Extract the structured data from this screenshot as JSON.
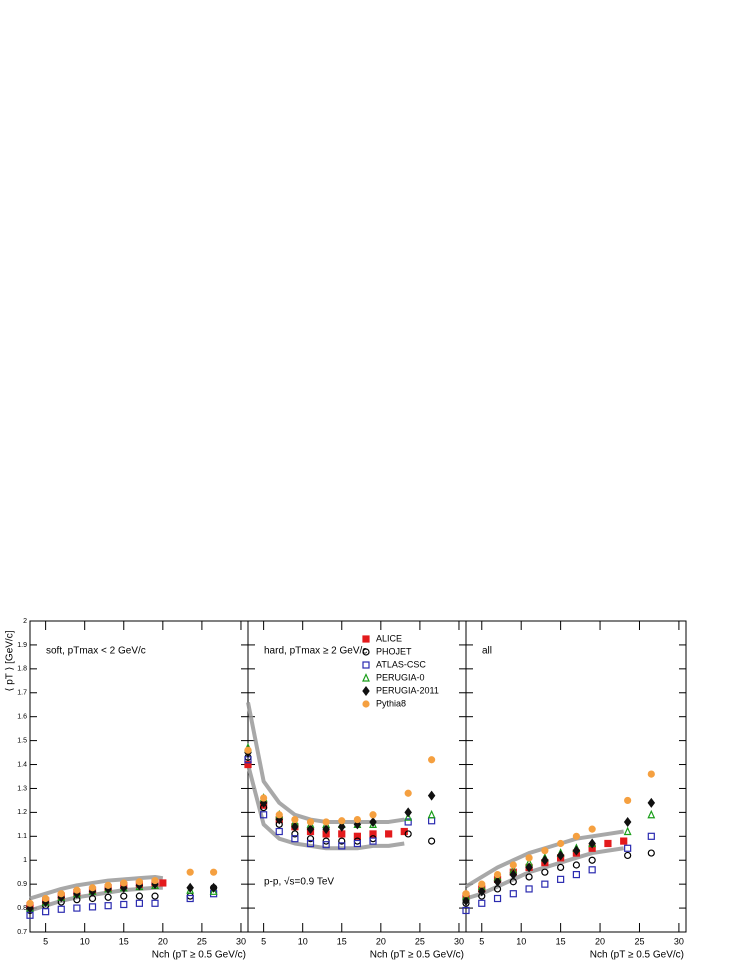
{
  "chart_data": [
    {
      "type": "scatter",
      "title": "soft, pTmax < 2 GeV/c",
      "ylabel": "⟨ pT ⟩ [GeV/c]",
      "xlabel": "Nch (pT ≥ 0.5 GeV/c)",
      "xlim": [
        3,
        30.9
      ],
      "xticks": [
        5,
        10,
        15,
        20,
        25,
        30
      ],
      "ylim": [
        0.7,
        2
      ],
      "yticks": [
        0.7,
        0.8,
        0.9,
        1,
        1.1,
        1.2,
        1.3,
        1.4,
        1.5,
        1.6,
        1.7,
        1.8,
        1.9,
        2
      ],
      "band": {
        "color": "#999999",
        "x": [
          3,
          5,
          7,
          9,
          11,
          13,
          15,
          17,
          19,
          20
        ],
        "lower": [
          0.79,
          0.81,
          0.83,
          0.845,
          0.855,
          0.865,
          0.875,
          0.88,
          0.885,
          0.885
        ],
        "upper": [
          0.84,
          0.86,
          0.88,
          0.895,
          0.905,
          0.915,
          0.92,
          0.925,
          0.93,
          0.925
        ]
      },
      "series": [
        {
          "x": [
            3,
            5,
            7,
            9,
            11,
            13,
            15,
            17,
            19,
            20
          ],
          "values": [
            0.81,
            0.83,
            0.85,
            0.865,
            0.875,
            0.885,
            0.895,
            0.9,
            0.905,
            0.905
          ]
        },
        {
          "x": [
            3,
            5,
            7,
            9,
            11,
            13,
            15,
            17,
            19,
            23.5,
            26.5
          ],
          "values": [
            0.79,
            0.81,
            0.825,
            0.835,
            0.84,
            0.845,
            0.85,
            0.85,
            0.85,
            0.85,
            0.885
          ]
        },
        {
          "x": [
            3,
            5,
            7,
            9,
            11,
            13,
            15,
            17,
            19,
            23.5,
            26.5
          ],
          "values": [
            0.77,
            0.785,
            0.795,
            0.8,
            0.805,
            0.81,
            0.815,
            0.82,
            0.82,
            0.84,
            0.86
          ]
        },
        {
          "x": [
            3,
            5,
            7,
            9,
            11,
            13,
            15,
            17,
            19,
            23.5,
            26.5
          ],
          "values": [
            0.8,
            0.825,
            0.845,
            0.86,
            0.87,
            0.88,
            0.885,
            0.89,
            0.895,
            0.875,
            0.87
          ]
        },
        {
          "x": [
            3,
            5,
            7,
            9,
            11,
            13,
            15,
            17,
            19,
            23.5,
            26.5
          ],
          "values": [
            0.8,
            0.825,
            0.845,
            0.86,
            0.87,
            0.88,
            0.885,
            0.895,
            0.9,
            0.885,
            0.885
          ]
        },
        {
          "x": [
            3,
            5,
            7,
            9,
            11,
            13,
            15,
            17,
            19,
            23.5,
            26.5
          ],
          "values": [
            0.82,
            0.84,
            0.86,
            0.875,
            0.885,
            0.895,
            0.905,
            0.91,
            0.915,
            0.95,
            0.95
          ]
        }
      ]
    },
    {
      "type": "scatter",
      "title": "hard, pTmax ≥ 2 GeV/c",
      "annotation": "p-p, √s=0.9 TeV",
      "xlabel": "Nch (pT ≥ 0.5 GeV/c)",
      "legend": "upper right",
      "xlim": [
        3,
        30.9
      ],
      "xticks": [
        5,
        10,
        15,
        20,
        25,
        30
      ],
      "ylim": [
        0.7,
        2
      ],
      "yticks": [
        0.7,
        0.8,
        0.9,
        1,
        1.1,
        1.2,
        1.3,
        1.4,
        1.5,
        1.6,
        1.7,
        1.8,
        1.9,
        2
      ],
      "band": {
        "color": "#999999",
        "x": [
          3,
          5,
          7,
          9,
          11,
          13,
          15,
          17,
          19,
          21,
          23
        ],
        "lower": [
          1.4,
          1.15,
          1.09,
          1.07,
          1.06,
          1.05,
          1.05,
          1.05,
          1.06,
          1.06,
          1.07
        ],
        "upper": [
          1.66,
          1.33,
          1.24,
          1.19,
          1.17,
          1.16,
          1.16,
          1.16,
          1.16,
          1.16,
          1.17
        ]
      },
      "series": [
        {
          "name": "ALICE",
          "color": "#e31a1c",
          "marker": "square",
          "filled": true,
          "x": [
            3,
            5,
            7,
            9,
            11,
            13,
            15,
            17,
            19,
            21,
            23
          ],
          "values": [
            1.4,
            1.23,
            1.17,
            1.14,
            1.12,
            1.11,
            1.11,
            1.1,
            1.11,
            1.11,
            1.12
          ]
        },
        {
          "name": "PHOJET",
          "color": "#000000",
          "marker": "circle",
          "filled": false,
          "x": [
            3,
            5,
            7,
            9,
            11,
            13,
            15,
            17,
            19,
            23.5,
            26.5
          ],
          "values": [
            1.43,
            1.22,
            1.15,
            1.11,
            1.09,
            1.08,
            1.08,
            1.08,
            1.09,
            1.11,
            1.08
          ]
        },
        {
          "name": "ATLAS-CSC",
          "color": "#2b2bb0",
          "marker": "square",
          "filled": false,
          "x": [
            3,
            5,
            7,
            9,
            11,
            13,
            15,
            17,
            19,
            23.5,
            26.5
          ],
          "values": [
            1.42,
            1.19,
            1.12,
            1.09,
            1.07,
            1.065,
            1.06,
            1.07,
            1.08,
            1.16,
            1.165
          ]
        },
        {
          "name": "PERUGIA-0",
          "color": "#1a9e1a",
          "marker": "triangle",
          "filled": false,
          "x": [
            3,
            5,
            7,
            9,
            11,
            13,
            15,
            17,
            19,
            23.5,
            26.5
          ],
          "values": [
            1.47,
            1.26,
            1.19,
            1.16,
            1.15,
            1.15,
            1.15,
            1.15,
            1.15,
            1.18,
            1.19
          ]
        },
        {
          "name": "PERUGIA-2011",
          "color": "#111111",
          "marker": "diamond",
          "filled": true,
          "x": [
            3,
            5,
            7,
            9,
            11,
            13,
            15,
            17,
            19,
            23.5,
            26.5
          ],
          "values": [
            1.45,
            1.24,
            1.17,
            1.14,
            1.13,
            1.13,
            1.14,
            1.15,
            1.16,
            1.2,
            1.27
          ]
        },
        {
          "name": "Pythia8",
          "color": "#f5a040",
          "marker": "circle",
          "filled": true,
          "x": [
            3,
            5,
            7,
            9,
            11,
            13,
            15,
            17,
            19,
            23.5,
            26.5
          ],
          "values": [
            1.46,
            1.26,
            1.19,
            1.17,
            1.16,
            1.16,
            1.165,
            1.17,
            1.19,
            1.28,
            1.42
          ]
        }
      ]
    },
    {
      "type": "scatter",
      "title": "all",
      "xlabel": "Nch (pT ≥ 0.5 GeV/c)",
      "xlim": [
        3,
        30.9
      ],
      "xticks": [
        5,
        10,
        15,
        20,
        25,
        30
      ],
      "ylim": [
        0.7,
        2
      ],
      "yticks": [
        0.7,
        0.8,
        0.9,
        1,
        1.1,
        1.2,
        1.3,
        1.4,
        1.5,
        1.6,
        1.7,
        1.8,
        1.9,
        2
      ],
      "band": {
        "color": "#999999",
        "x": [
          3,
          5,
          7,
          9,
          11,
          13,
          15,
          17,
          19,
          21,
          23
        ],
        "lower": [
          0.84,
          0.86,
          0.89,
          0.92,
          0.95,
          0.97,
          0.99,
          1.01,
          1.03,
          1.04,
          1.05
        ],
        "upper": [
          0.89,
          0.93,
          0.97,
          1.0,
          1.03,
          1.05,
          1.07,
          1.09,
          1.1,
          1.11,
          1.12
        ]
      },
      "series": [
        {
          "x": [
            3,
            5,
            7,
            9,
            11,
            13,
            15,
            17,
            19,
            21,
            23
          ],
          "values": [
            0.85,
            0.88,
            0.92,
            0.95,
            0.97,
            0.99,
            1.01,
            1.03,
            1.05,
            1.07,
            1.08
          ]
        },
        {
          "x": [
            3,
            5,
            7,
            9,
            11,
            13,
            15,
            17,
            19,
            23.5,
            26.5
          ],
          "values": [
            0.82,
            0.85,
            0.88,
            0.91,
            0.93,
            0.95,
            0.97,
            0.98,
            1.0,
            1.02,
            1.03
          ]
        },
        {
          "x": [
            3,
            5,
            7,
            9,
            11,
            13,
            15,
            17,
            19,
            23.5,
            26.5
          ],
          "values": [
            0.79,
            0.82,
            0.84,
            0.86,
            0.88,
            0.9,
            0.92,
            0.94,
            0.96,
            1.05,
            1.1
          ]
        },
        {
          "x": [
            3,
            5,
            7,
            9,
            11,
            13,
            15,
            17,
            19,
            23.5,
            26.5
          ],
          "values": [
            0.85,
            0.89,
            0.93,
            0.96,
            0.99,
            1.01,
            1.03,
            1.05,
            1.07,
            1.12,
            1.19
          ]
        },
        {
          "x": [
            3,
            5,
            7,
            9,
            11,
            13,
            15,
            17,
            19,
            23.5,
            26.5
          ],
          "values": [
            0.83,
            0.87,
            0.91,
            0.94,
            0.97,
            1.0,
            1.02,
            1.04,
            1.07,
            1.16,
            1.24
          ]
        },
        {
          "x": [
            3,
            5,
            7,
            9,
            11,
            13,
            15,
            17,
            19,
            23.5,
            26.5
          ],
          "values": [
            0.86,
            0.9,
            0.94,
            0.98,
            1.01,
            1.04,
            1.07,
            1.1,
            1.13,
            1.25,
            1.36
          ]
        }
      ]
    }
  ]
}
